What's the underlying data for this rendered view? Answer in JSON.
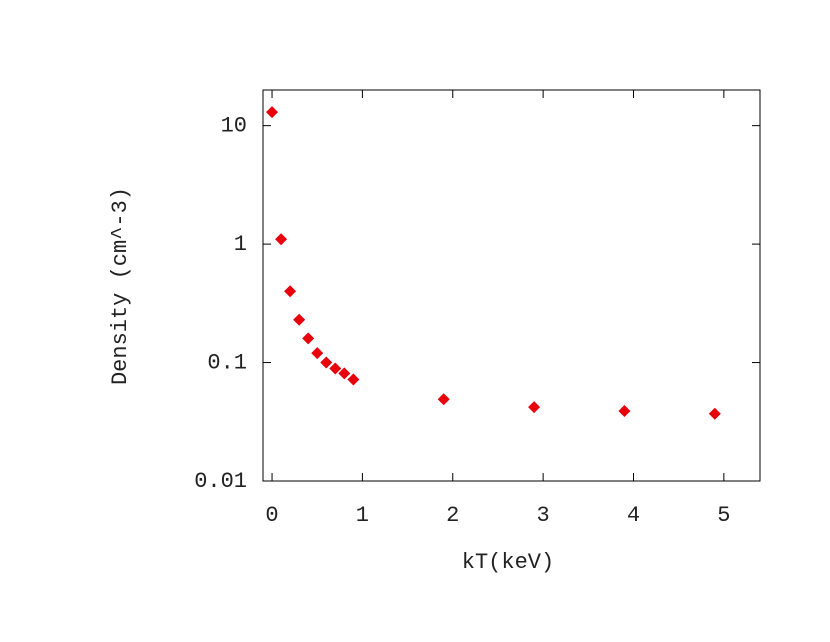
{
  "chart_data": {
    "type": "scatter",
    "x_label": "kT(keV)",
    "y_label": "Density (cm^-3)",
    "x": [
      0,
      0.1,
      0.2,
      0.3,
      0.4,
      0.5,
      0.6,
      0.7,
      0.8,
      0.9,
      1.9,
      2.9,
      3.9,
      4.9
    ],
    "values": [
      13,
      1.1,
      0.4,
      0.23,
      0.16,
      0.12,
      0.1,
      0.089,
      0.081,
      0.072,
      0.049,
      0.042,
      0.039,
      0.037
    ],
    "color": "#e8000b",
    "xlim": [
      -0.1,
      5.4
    ],
    "xticks": [
      0,
      1,
      2,
      3,
      4,
      5
    ],
    "ylim": [
      0.01,
      20
    ],
    "yticks": [
      0.01,
      0.1,
      1,
      10
    ],
    "log_y": true
  }
}
